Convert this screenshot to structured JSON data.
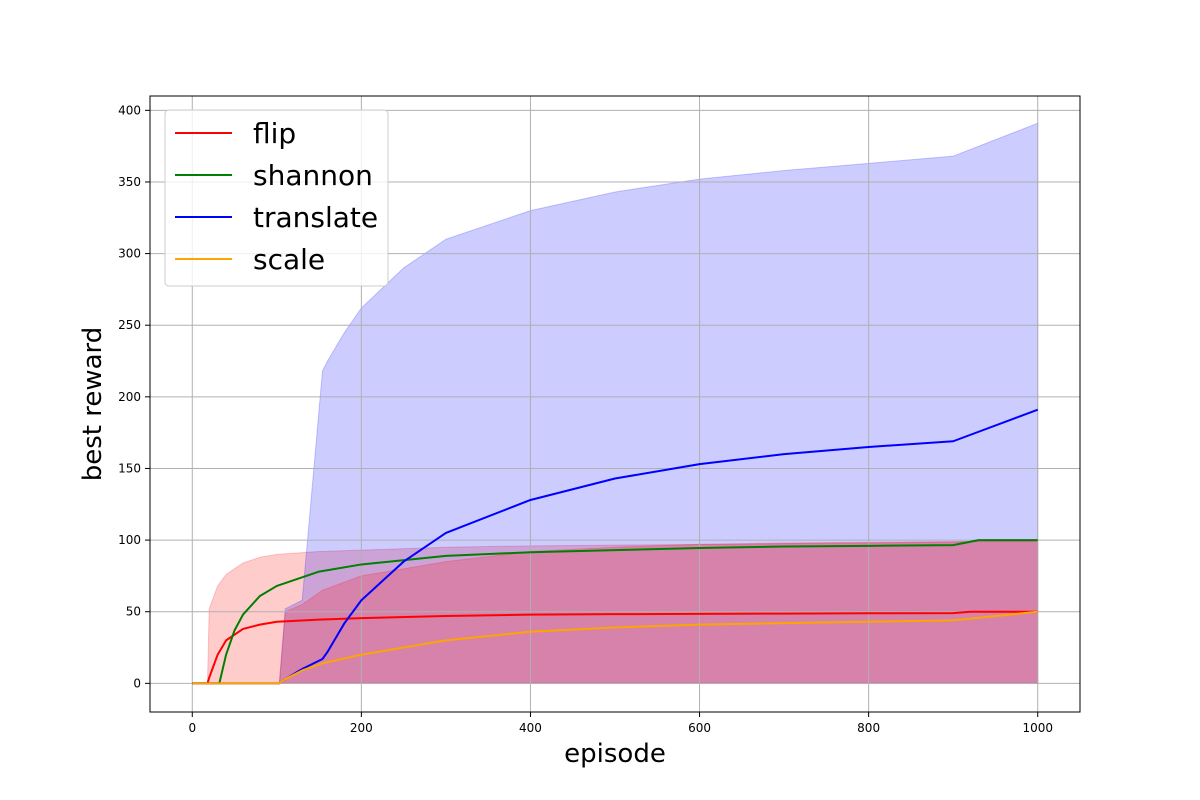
{
  "chart_data": {
    "type": "line",
    "title": "",
    "xlabel": "episode",
    "ylabel": "best reward",
    "xlim": [
      -50,
      1050
    ],
    "ylim": [
      -20,
      410
    ],
    "xticks": [
      0,
      200,
      400,
      600,
      800,
      1000
    ],
    "yticks": [
      0,
      50,
      100,
      150,
      200,
      250,
      300,
      350,
      400
    ],
    "grid": true,
    "legend_position": "top-left",
    "series": [
      {
        "name": "flip",
        "color": "#ff0000",
        "shade_color": "#ff0000",
        "x": [
          0,
          18,
          20,
          30,
          40,
          60,
          80,
          100,
          150,
          200,
          300,
          400,
          500,
          600,
          700,
          800,
          900,
          920,
          1000
        ],
        "y": [
          0,
          0,
          4,
          20,
          30,
          38,
          41,
          43,
          44.5,
          45.5,
          47,
          48,
          48.3,
          48.5,
          48.7,
          48.9,
          49,
          50,
          50
        ],
        "lower": [
          0,
          0,
          0,
          0,
          0,
          0,
          0,
          0,
          0,
          0,
          0,
          0,
          0,
          0,
          0,
          0,
          0,
          0,
          0
        ],
        "upper": [
          0,
          0,
          52,
          68,
          76,
          84,
          88,
          90,
          92,
          93,
          95,
          96,
          96.5,
          97,
          97.5,
          98,
          98.5,
          99,
          99
        ]
      },
      {
        "name": "shannon",
        "color": "#008000",
        "shade_color": "#ff0000",
        "x": [
          0,
          32,
          40,
          50,
          60,
          80,
          100,
          150,
          200,
          300,
          400,
          500,
          600,
          700,
          800,
          900,
          930,
          1000
        ],
        "y": [
          0,
          0,
          20,
          37,
          48,
          61,
          68,
          78,
          83,
          89,
          91.5,
          93,
          94.5,
          95.5,
          96,
          96.5,
          100,
          100
        ],
        "lower": [
          0,
          0,
          0,
          0,
          0,
          0,
          0,
          0,
          0,
          0,
          0,
          0,
          0,
          0,
          0,
          0,
          0,
          0
        ],
        "upper": [
          0,
          0,
          0,
          0,
          0,
          0,
          0,
          0,
          0,
          0,
          0,
          0,
          0,
          0,
          0,
          0,
          0,
          0
        ]
      },
      {
        "name": "translate",
        "color": "#0000ff",
        "shade_color": "#0000ff",
        "x": [
          0,
          103,
          110,
          130,
          154,
          160,
          180,
          200,
          250,
          300,
          400,
          500,
          600,
          700,
          800,
          900,
          1000
        ],
        "y": [
          0,
          0,
          3,
          10,
          17,
          22,
          42,
          58,
          85,
          105,
          128,
          143,
          153,
          160,
          165,
          169,
          191
        ],
        "lower": [
          0,
          0,
          0,
          0,
          0,
          0,
          0,
          0,
          0,
          0,
          0,
          0,
          0,
          0,
          0,
          0,
          0
        ],
        "upper": [
          0,
          0,
          52,
          58,
          218,
          225,
          245,
          262,
          290,
          310,
          330,
          343,
          352,
          358,
          363,
          368,
          391
        ]
      },
      {
        "name": "scale",
        "color": "#ffa500",
        "shade_color": "#ff0000",
        "x": [
          0,
          103,
          110,
          130,
          154,
          200,
          300,
          400,
          500,
          600,
          700,
          800,
          900,
          1000
        ],
        "y": [
          0,
          0,
          3,
          9,
          14,
          20,
          30,
          36,
          39,
          41,
          42,
          43,
          44,
          50
        ],
        "lower": [
          0,
          0,
          0,
          0,
          0,
          0,
          0,
          0,
          0,
          0,
          0,
          0,
          0,
          0
        ],
        "upper": [
          0,
          0,
          50,
          55,
          65,
          75,
          85,
          92,
          95,
          97,
          98,
          98.5,
          99,
          99
        ]
      }
    ]
  }
}
